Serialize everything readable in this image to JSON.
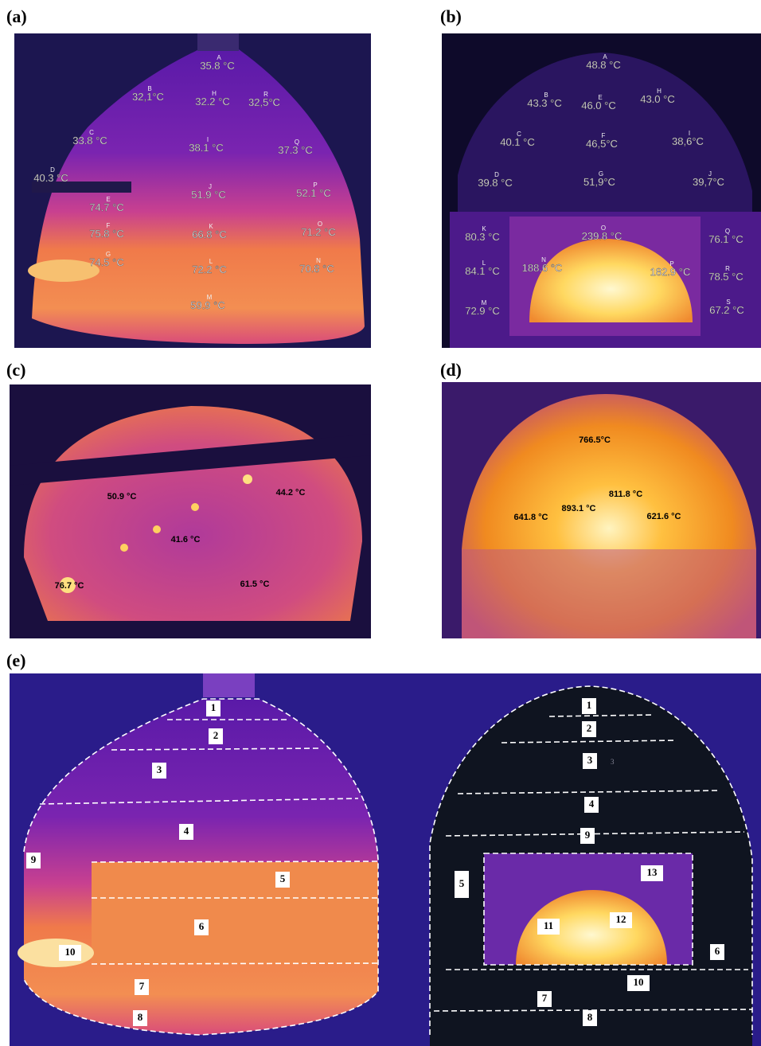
{
  "panels": [
    {
      "label": "(a)",
      "points": [
        {
          "id": "A",
          "temp": "35.8 °C"
        },
        {
          "id": "B",
          "temp": "32,1°C"
        },
        {
          "id": "H",
          "temp": "32.2 °C"
        },
        {
          "id": "R",
          "temp": "32,5°C"
        },
        {
          "id": "C",
          "temp": "33.8 °C"
        },
        {
          "id": "I",
          "temp": "38.1 °C"
        },
        {
          "id": "Q",
          "temp": "37.3 °C"
        },
        {
          "id": "D",
          "temp": "40.3 °C"
        },
        {
          "id": "J",
          "temp": "51.9 °C"
        },
        {
          "id": "P",
          "temp": "52.1 °C"
        },
        {
          "id": "E",
          "temp": "74.7 °C"
        },
        {
          "id": "F",
          "temp": "75.8 °C"
        },
        {
          "id": "K",
          "temp": "66.8 °C"
        },
        {
          "id": "O",
          "temp": "71.2 °C"
        },
        {
          "id": "G",
          "temp": "74.5 °C"
        },
        {
          "id": "L",
          "temp": "72.2 °C"
        },
        {
          "id": "N",
          "temp": "70.8 °C"
        },
        {
          "id": "M",
          "temp": "59.9 °C"
        }
      ]
    },
    {
      "label": "(b)",
      "points": [
        {
          "id": "A",
          "temp": "48.8 °C"
        },
        {
          "id": "B",
          "temp": "43.3 °C"
        },
        {
          "id": "E",
          "temp": "46.0 °C"
        },
        {
          "id": "H",
          "temp": "43.0 °C"
        },
        {
          "id": "C",
          "temp": "40.1 °C"
        },
        {
          "id": "F",
          "temp": "46,5°C"
        },
        {
          "id": "I",
          "temp": "38,6°C"
        },
        {
          "id": "D",
          "temp": "39.8 °C"
        },
        {
          "id": "G",
          "temp": "51,9°C"
        },
        {
          "id": "J",
          "temp": "39,7°C"
        },
        {
          "id": "K",
          "temp": "80.3 °C"
        },
        {
          "id": "O",
          "temp": "239.8 °C"
        },
        {
          "id": "Q",
          "temp": "76.1 °C"
        },
        {
          "id": "L",
          "temp": "84.1 °C"
        },
        {
          "id": "N",
          "temp": "188.6 °C"
        },
        {
          "id": "P",
          "temp": "182.9 °C"
        },
        {
          "id": "R",
          "temp": "78.5 °C"
        },
        {
          "id": "M",
          "temp": "72.9 °C"
        },
        {
          "id": "S",
          "temp": "67.2 °C"
        }
      ]
    },
    {
      "label": "(c)",
      "points": [
        {
          "temp": "50.9 °C"
        },
        {
          "temp": "44.2 °C"
        },
        {
          "temp": "41.6 °C"
        },
        {
          "temp": "76.7 °C"
        },
        {
          "temp": "61.5 °C"
        }
      ]
    },
    {
      "label": "(d)",
      "points": [
        {
          "temp": "766.5°C"
        },
        {
          "temp": "811.8 °C"
        },
        {
          "temp": "893.1 °C"
        },
        {
          "temp": "641.8 °C"
        },
        {
          "temp": "621.6 °C"
        }
      ]
    },
    {
      "label": "(e)",
      "left_zones": [
        "1",
        "2",
        "3",
        "4",
        "9",
        "5",
        "6",
        "10",
        "7",
        "8"
      ],
      "right_zones": [
        "1",
        "2",
        "3",
        "4",
        "9",
        "5",
        "13",
        "12",
        "11",
        "6",
        "10",
        "7",
        "8"
      ],
      "right_note": "3"
    }
  ]
}
